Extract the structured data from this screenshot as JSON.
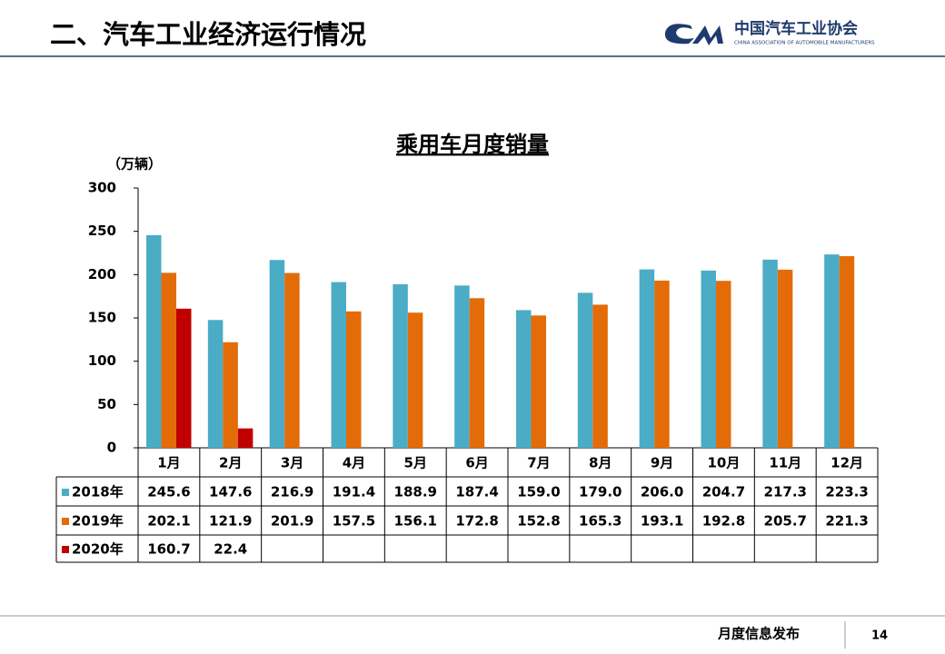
{
  "header": {
    "title": "二、汽车工业经济运行情况",
    "logo_name": "中国汽车工业协会",
    "logo_subtitle": "CHINA ASSOCIATION OF AUTOMOBILE MANUFACTURERS"
  },
  "footer": {
    "text": "月度信息发布",
    "page": "14"
  },
  "chart_data": {
    "type": "bar",
    "title": "乘用车月度销量",
    "y_label": "（万辆）",
    "categories": [
      "1月",
      "2月",
      "3月",
      "4月",
      "5月",
      "6月",
      "7月",
      "8月",
      "9月",
      "10月",
      "11月",
      "12月"
    ],
    "series": [
      {
        "name": "2018年",
        "color": "#4bacc6",
        "values": [
          245.6,
          147.6,
          216.9,
          191.4,
          188.9,
          187.4,
          159.0,
          179.0,
          206.0,
          204.7,
          217.3,
          223.3
        ],
        "value_labels": [
          "245.6",
          "147.6",
          "216.9",
          "191.4",
          "188.9",
          "187.4",
          "159.0",
          "179.0",
          "206.0",
          "204.7",
          "217.3",
          "223.3"
        ]
      },
      {
        "name": "2019年",
        "color": "#e36c09",
        "values": [
          202.1,
          121.9,
          201.9,
          157.5,
          156.1,
          172.8,
          152.8,
          165.3,
          193.1,
          192.8,
          205.7,
          221.3
        ],
        "value_labels": [
          "202.1",
          "121.9",
          "201.9",
          "157.5",
          "156.1",
          "172.8",
          "152.8",
          "165.3",
          "193.1",
          "192.8",
          "205.7",
          "221.3"
        ]
      },
      {
        "name": "2020年",
        "color": "#c00000",
        "values": [
          160.7,
          22.4,
          null,
          null,
          null,
          null,
          null,
          null,
          null,
          null,
          null,
          null
        ],
        "value_labels": [
          "160.7",
          "22.4",
          null,
          null,
          null,
          null,
          null,
          null,
          null,
          null,
          null,
          null
        ]
      }
    ],
    "ylim": [
      0,
      300
    ],
    "yticks": [
      0,
      50,
      100,
      150,
      200,
      250,
      300
    ],
    "grid": false
  }
}
